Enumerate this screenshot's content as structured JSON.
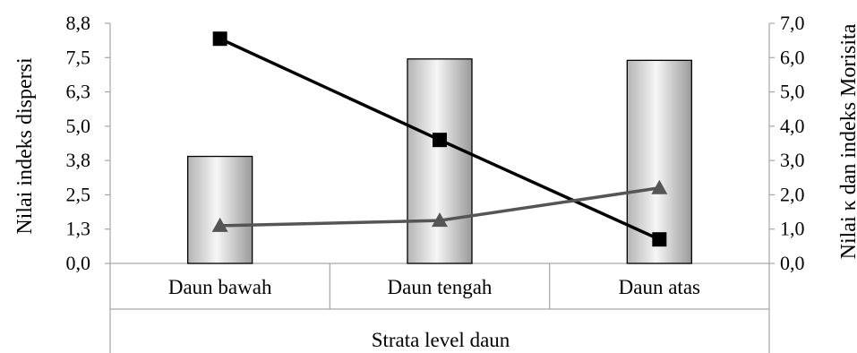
{
  "chart_data": {
    "type": "bar",
    "categories": [
      "Daun bawah",
      "Daun tengah",
      "Daun atas"
    ],
    "xlabel": "Strata level daun",
    "ylabel_left": "Nilai indeks dispersi",
    "ylabel_right": "Nilai κ dan indeks Morisita",
    "left_axis": {
      "ticks": [
        "0,0",
        "1,3",
        "2,5",
        "3,8",
        "5,0",
        "6,3",
        "7,5",
        "8,8"
      ],
      "ylim": [
        0,
        8.75
      ]
    },
    "right_axis": {
      "ticks": [
        "0,0",
        "1,0",
        "2,0",
        "3,0",
        "4,0",
        "5,0",
        "6,0",
        "7,0"
      ],
      "ylim": [
        0,
        7
      ]
    },
    "series": [
      {
        "axis": "left",
        "kind": "bar",
        "values": [
          3.9,
          7.45,
          7.4
        ]
      },
      {
        "axis": "right",
        "kind": "line",
        "marker": "square",
        "color": "#000000",
        "values": [
          6.55,
          3.6,
          0.7
        ]
      },
      {
        "axis": "right",
        "kind": "line",
        "marker": "triangle",
        "color": "#555555",
        "values": [
          1.1,
          1.25,
          2.2
        ]
      }
    ],
    "grid": false
  }
}
